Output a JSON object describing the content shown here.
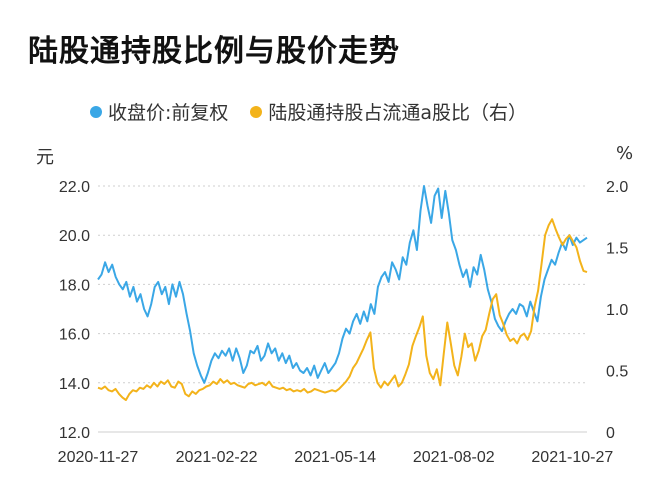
{
  "title": "陆股通持股比例与股价走势",
  "legend": {
    "left": {
      "label": "收盘价:前复权",
      "color": "#3aa7e6"
    },
    "right": {
      "label": "陆股通持股占流通a股比（右）",
      "color": "#f3b31b"
    }
  },
  "units": {
    "left": "元",
    "right": "%"
  },
  "chart_data": {
    "type": "line",
    "title": "陆股通持股比例与股价走势",
    "x_labels": [
      "2020-11-27",
      "2021-02-22",
      "2021-05-14",
      "2021-08-02",
      "2021-10-27"
    ],
    "y_left": {
      "ticks": [
        "22.0",
        "20.0",
        "18.0",
        "16.0",
        "14.0",
        "12.0"
      ],
      "range": [
        12,
        22
      ]
    },
    "y_right": {
      "ticks": [
        "2.0",
        "1.5",
        "1.0",
        "0.5",
        "0"
      ],
      "range": [
        0,
        2.0
      ]
    },
    "series": [
      {
        "name": "收盘价:前复权",
        "axis": "left",
        "color": "#3aa7e6",
        "values": [
          18.2,
          18.4,
          18.9,
          18.5,
          18.8,
          18.3,
          18.0,
          17.8,
          18.1,
          17.5,
          17.9,
          17.3,
          17.6,
          17.0,
          16.7,
          17.2,
          17.9,
          18.1,
          17.6,
          17.9,
          17.2,
          18.0,
          17.5,
          18.1,
          17.6,
          16.8,
          16.1,
          15.2,
          14.7,
          14.3,
          14.0,
          14.4,
          14.9,
          15.2,
          15.0,
          15.3,
          15.1,
          15.4,
          14.9,
          15.4,
          15.0,
          14.4,
          14.7,
          15.3,
          15.2,
          15.5,
          14.9,
          15.1,
          15.6,
          15.2,
          15.4,
          14.9,
          15.2,
          14.8,
          15.1,
          14.6,
          14.8,
          14.5,
          14.4,
          14.6,
          14.3,
          14.7,
          14.2,
          14.5,
          14.8,
          14.4,
          14.6,
          14.8,
          15.2,
          15.8,
          16.2,
          16.0,
          16.5,
          16.8,
          16.4,
          16.9,
          16.5,
          17.2,
          16.8,
          17.9,
          18.3,
          18.5,
          18.1,
          18.9,
          18.6,
          18.2,
          19.1,
          18.8,
          19.7,
          20.2,
          19.4,
          21.0,
          22.0,
          21.2,
          20.5,
          21.6,
          21.9,
          20.7,
          21.8,
          20.9,
          19.8,
          19.4,
          18.8,
          18.3,
          18.6,
          17.9,
          18.7,
          18.4,
          19.2,
          18.6,
          17.8,
          17.3,
          16.6,
          16.3,
          16.1,
          16.5,
          16.8,
          17.0,
          16.8,
          17.2,
          17.1,
          16.7,
          17.3,
          16.9,
          16.5,
          17.5,
          18.2,
          18.6,
          19.0,
          18.8,
          19.3,
          19.7,
          19.4,
          20.0,
          19.6,
          19.9,
          19.7,
          19.8,
          19.9
        ]
      },
      {
        "name": "陆股通持股占流通a股比（右）",
        "axis": "right",
        "color": "#f3b31b",
        "values": [
          0.36,
          0.35,
          0.37,
          0.34,
          0.33,
          0.35,
          0.31,
          0.28,
          0.26,
          0.31,
          0.34,
          0.33,
          0.36,
          0.35,
          0.38,
          0.36,
          0.4,
          0.37,
          0.41,
          0.39,
          0.42,
          0.37,
          0.36,
          0.41,
          0.39,
          0.31,
          0.29,
          0.33,
          0.31,
          0.34,
          0.35,
          0.37,
          0.38,
          0.41,
          0.39,
          0.43,
          0.4,
          0.42,
          0.39,
          0.4,
          0.38,
          0.37,
          0.36,
          0.39,
          0.4,
          0.38,
          0.39,
          0.4,
          0.38,
          0.41,
          0.37,
          0.36,
          0.35,
          0.36,
          0.34,
          0.35,
          0.33,
          0.34,
          0.33,
          0.35,
          0.32,
          0.33,
          0.35,
          0.34,
          0.33,
          0.32,
          0.33,
          0.34,
          0.33,
          0.35,
          0.38,
          0.41,
          0.45,
          0.52,
          0.56,
          0.62,
          0.68,
          0.75,
          0.81,
          0.52,
          0.4,
          0.36,
          0.41,
          0.38,
          0.42,
          0.46,
          0.37,
          0.4,
          0.47,
          0.55,
          0.7,
          0.78,
          0.85,
          0.94,
          0.62,
          0.48,
          0.43,
          0.51,
          0.38,
          0.64,
          0.89,
          0.72,
          0.54,
          0.46,
          0.61,
          0.8,
          0.69,
          0.72,
          0.58,
          0.66,
          0.78,
          0.83,
          0.96,
          1.08,
          1.12,
          0.95,
          0.88,
          0.79,
          0.74,
          0.76,
          0.72,
          0.78,
          0.8,
          0.75,
          0.82,
          1.02,
          1.15,
          1.37,
          1.6,
          1.68,
          1.73,
          1.65,
          1.58,
          1.52,
          1.57,
          1.6,
          1.55,
          1.5,
          1.39,
          1.31,
          1.3
        ]
      }
    ]
  }
}
